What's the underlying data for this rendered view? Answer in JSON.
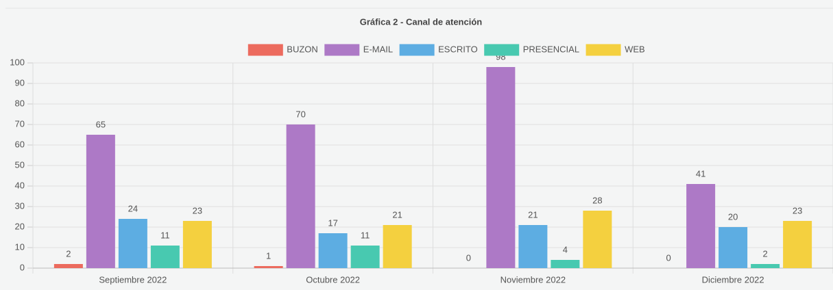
{
  "chart_data": {
    "type": "bar",
    "title": "Gráfica 2 - Canal de atención",
    "categories": [
      "Septiembre 2022",
      "Octubre 2022",
      "Noviembre 2022",
      "Diciembre 2022"
    ],
    "series": [
      {
        "name": "BUZON",
        "color": "#ec6b5e",
        "values": [
          2,
          1,
          0,
          0
        ]
      },
      {
        "name": "E-MAIL",
        "color": "#ad79c6",
        "values": [
          65,
          70,
          98,
          41
        ]
      },
      {
        "name": "ESCRITO",
        "color": "#5dade2",
        "values": [
          24,
          17,
          21,
          20
        ]
      },
      {
        "name": "PRESENCIAL",
        "color": "#48c9b0",
        "values": [
          11,
          11,
          4,
          2
        ]
      },
      {
        "name": "WEB",
        "color": "#f4d03f",
        "values": [
          23,
          21,
          28,
          23
        ]
      }
    ],
    "ylim": [
      0,
      100
    ],
    "yticks": [
      0,
      10,
      20,
      30,
      40,
      50,
      60,
      70,
      80,
      90,
      100
    ],
    "grid": true,
    "legend": "top"
  }
}
